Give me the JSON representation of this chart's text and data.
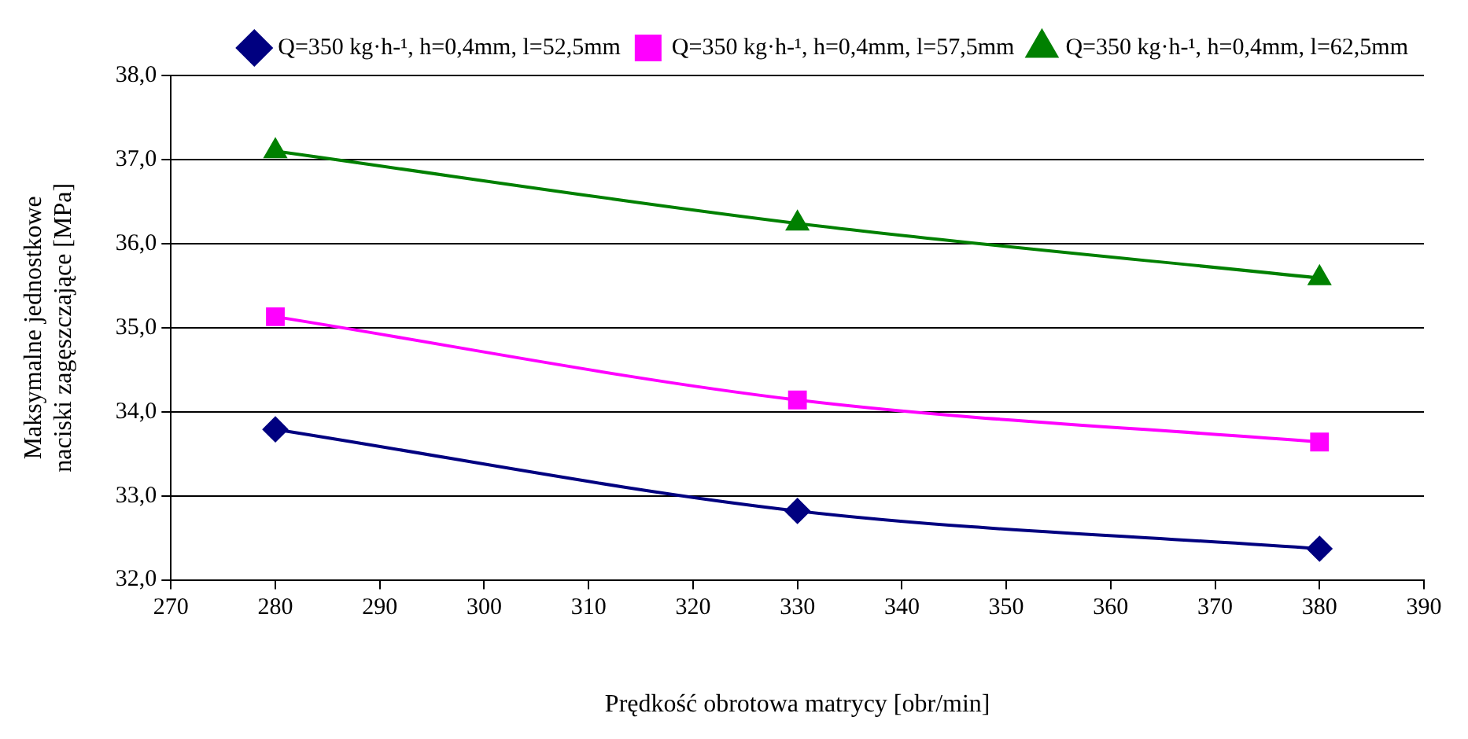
{
  "chart_data": {
    "type": "line",
    "xlabel": "Prędkość obrotowa matrycy [obr/min]",
    "ylabel": "Maksymalne jednostkowe naciski zagęszczające [MPa]",
    "x": [
      280,
      330,
      380
    ],
    "series": [
      {
        "name": "Q=350 kg·h-¹, h=0,4mm, l=52,5mm",
        "color": "#000080",
        "marker": "diamond",
        "values": [
          33.79,
          32.82,
          32.37
        ]
      },
      {
        "name": "Q=350 kg·h-¹, h=0,4mm, l=57,5mm",
        "color": "#ff00ff",
        "marker": "square",
        "values": [
          35.13,
          34.14,
          33.64
        ]
      },
      {
        "name": "Q=350 kg·h-¹, h=0,4mm, l=62,5mm",
        "color": "#008000",
        "marker": "triangle",
        "values": [
          37.1,
          36.24,
          35.59
        ]
      }
    ],
    "xlim": [
      270,
      390
    ],
    "xticks": [
      270,
      280,
      290,
      300,
      310,
      320,
      330,
      340,
      350,
      360,
      370,
      380,
      390
    ],
    "ylim": [
      32,
      38
    ],
    "yticks": [
      {
        "value": 32,
        "label": "32,0"
      },
      {
        "value": 33,
        "label": "33,0"
      },
      {
        "value": 34,
        "label": "34,0"
      },
      {
        "value": 35,
        "label": "35,0"
      },
      {
        "value": 36,
        "label": "36,0"
      },
      {
        "value": 37,
        "label": "37,0"
      },
      {
        "value": 38,
        "label": "38,0"
      }
    ],
    "grid": "y",
    "legend": "top right"
  }
}
